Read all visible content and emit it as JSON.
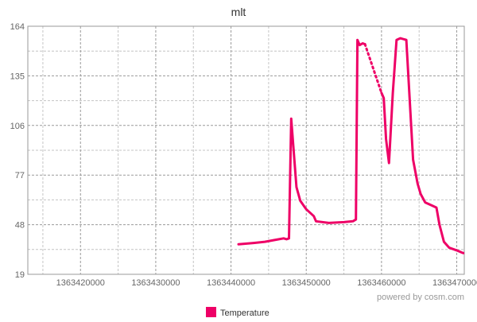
{
  "chart_data": {
    "type": "line",
    "title": "mlt",
    "xlabel": "",
    "ylabel": "",
    "xlim": [
      1363413000,
      1363471000
    ],
    "ylim": [
      19,
      164
    ],
    "x_ticks": [
      1363420000,
      1363430000,
      1363440000,
      1363450000,
      1363460000,
      1363470000
    ],
    "x_tick_labels": [
      "1363420000",
      "1363430000",
      "1363440000",
      "1363450000",
      "1363460000",
      "1363470000"
    ],
    "y_ticks": [
      19,
      48,
      77,
      106,
      135,
      164
    ],
    "y_tick_labels": [
      "19",
      "48",
      "77",
      "106",
      "135",
      "164"
    ],
    "grid": true,
    "legend_position": "bottom-center",
    "footer": "powered by cosm.com",
    "series": [
      {
        "name": "Temperature",
        "color": "#ee0066",
        "segments": [
          {
            "style": "solid",
            "points": [
              [
                1363441000,
                36.5
              ],
              [
                1363443000,
                37.3
              ],
              [
                1363444500,
                38.0
              ],
              [
                1363446000,
                39.2
              ],
              [
                1363447000,
                40.0
              ],
              [
                1363447400,
                39.5
              ],
              [
                1363447700,
                40.0
              ],
              [
                1363448000,
                110.0
              ],
              [
                1363448700,
                70.0
              ],
              [
                1363449200,
                62.0
              ],
              [
                1363450000,
                57.0
              ],
              [
                1363451000,
                53.0
              ],
              [
                1363451300,
                50.0
              ],
              [
                1363453000,
                49.0
              ],
              [
                1363455000,
                49.5
              ],
              [
                1363456200,
                50.0
              ],
              [
                1363456600,
                51.0
              ],
              [
                1363456800,
                156.0
              ],
              [
                1363457100,
                153.0
              ],
              [
                1363457500,
                154.0
              ],
              [
                1363457800,
                153.5
              ]
            ]
          },
          {
            "style": "dotted",
            "points": [
              [
                1363457800,
                153.5
              ],
              [
                1363460000,
                125.0
              ]
            ]
          },
          {
            "style": "solid",
            "points": [
              [
                1363460000,
                125.0
              ],
              [
                1363460300,
                122.0
              ],
              [
                1363460600,
                98.0
              ],
              [
                1363461000,
                84.0
              ],
              [
                1363461500,
                125.0
              ],
              [
                1363462000,
                156.0
              ],
              [
                1363462500,
                157.0
              ],
              [
                1363463300,
                156.0
              ],
              [
                1363464200,
                86.0
              ],
              [
                1363464800,
                72.0
              ],
              [
                1363465200,
                66.0
              ],
              [
                1363465800,
                61.0
              ],
              [
                1363466800,
                59.0
              ],
              [
                1363467300,
                58.0
              ],
              [
                1363467700,
                48.0
              ],
              [
                1363468300,
                38.0
              ],
              [
                1363469000,
                34.5
              ],
              [
                1363470000,
                33.0
              ],
              [
                1363470800,
                31.5
              ],
              [
                1363471500,
                31.0
              ],
              [
                1363472500,
                30.5
              ],
              [
                1363474000,
                30.5
              ],
              [
                1363475000,
                30.0
              ],
              [
                1363476000,
                29.5
              ],
              [
                1363477000,
                29.0
              ],
              [
                1363478000,
                28.5
              ],
              [
                1363478800,
                28.5
              ]
            ]
          }
        ]
      }
    ]
  }
}
